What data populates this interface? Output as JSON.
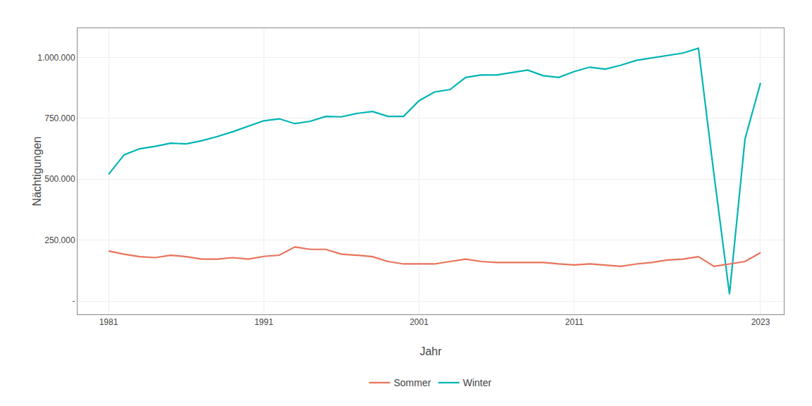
{
  "chart_data": {
    "type": "line",
    "xlabel": "Jahr",
    "ylabel": "Nächtigungen",
    "x": [
      1981,
      1982,
      1983,
      1984,
      1985,
      1986,
      1987,
      1988,
      1989,
      1990,
      1991,
      1992,
      1993,
      1994,
      1995,
      1996,
      1997,
      1998,
      1999,
      2000,
      2001,
      2002,
      2003,
      2004,
      2005,
      2006,
      2007,
      2008,
      2009,
      2010,
      2011,
      2012,
      2013,
      2014,
      2015,
      2016,
      2017,
      2018,
      2019,
      2020,
      2021,
      2022,
      2023
    ],
    "series": [
      {
        "name": "Winter",
        "color": "#00B4B4",
        "values": [
          520000,
          600000,
          625000,
          635000,
          648000,
          645000,
          658000,
          675000,
          695000,
          718000,
          740000,
          748000,
          728000,
          738000,
          758000,
          756000,
          770000,
          778000,
          758000,
          758000,
          822000,
          858000,
          868000,
          918000,
          928000,
          928000,
          938000,
          948000,
          925000,
          918000,
          942000,
          960000,
          952000,
          968000,
          988000,
          998000,
          1010000,
          1018000,
          1038000,
          520000,
          28000,
          665000,
          895000
        ]
      },
      {
        "name": "Sommer",
        "color": "#E8735A",
        "values": [
          205000,
          192000,
          182000,
          178000,
          188000,
          182000,
          172000,
          172000,
          178000,
          172000,
          183000,
          188000,
          222000,
          212000,
          212000,
          192000,
          188000,
          182000,
          162000,
          152000,
          152000,
          152000,
          162000,
          172000,
          162000,
          158000,
          158000,
          158000,
          158000,
          152000,
          148000,
          152000,
          148000,
          142000,
          152000,
          158000,
          168000,
          172000,
          182000,
          142000,
          152000,
          162000,
          198000
        ]
      }
    ],
    "xlim": [
      1979.0,
      2024.5
    ],
    "xticks": [
      1981,
      1991,
      2001,
      2011,
      2023
    ],
    "ylim": [
      -55000,
      1120000
    ],
    "yticks": [
      {
        "value": 0,
        "label": "-"
      },
      {
        "value": 250000,
        "label": "250.000"
      },
      {
        "value": 500000,
        "label": "500.000"
      },
      {
        "value": 750000,
        "label": "750.000"
      },
      {
        "value": 1000000,
        "label": "1.000.000"
      }
    ],
    "grid": true,
    "legend": "bottom"
  }
}
